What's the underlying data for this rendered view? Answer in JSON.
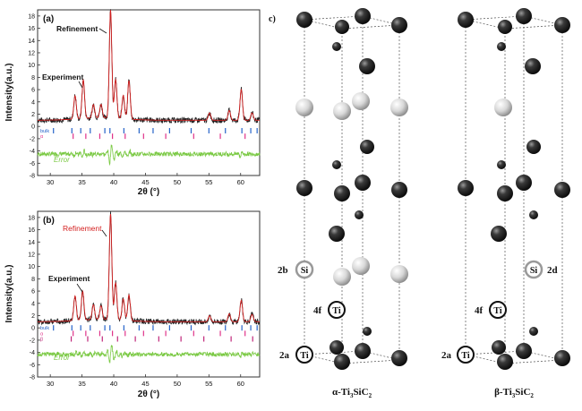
{
  "chart_data": [
    {
      "type": "line",
      "panel_label": "(a)",
      "xlabel": "2θ (°)",
      "ylabel": "Intensity(a.u.)",
      "xlim": [
        28,
        63
      ],
      "ylim": [
        -8,
        19
      ],
      "x_ticks": [
        30,
        35,
        40,
        45,
        50,
        55,
        60
      ],
      "y_ticks": [
        -8,
        -6,
        -4,
        -2,
        0,
        2,
        4,
        6,
        8,
        10,
        12,
        14,
        16,
        18
      ],
      "annotations": [
        "Refinement",
        "Experiment",
        "Error"
      ],
      "series": [
        {
          "name": "Experiment",
          "color": "#222222",
          "peaks": [
            [
              33.9,
              3.8
            ],
            [
              35.2,
              6.3
            ],
            [
              36.8,
              2.2
            ],
            [
              38.0,
              2.2
            ],
            [
              39.5,
              17.6
            ],
            [
              40.3,
              6.3
            ],
            [
              41.5,
              3.8
            ],
            [
              42.4,
              6.3
            ],
            [
              55.1,
              1.2
            ],
            [
              58.2,
              1.6
            ],
            [
              60.1,
              5.0
            ],
            [
              61.8,
              1.2
            ]
          ]
        },
        {
          "name": "Refinement",
          "color": "#d42020",
          "peaks": [
            [
              33.9,
              3.8
            ],
            [
              35.2,
              6.3
            ],
            [
              36.8,
              2.2
            ],
            [
              38.0,
              2.2
            ],
            [
              39.5,
              17.6
            ],
            [
              40.3,
              6.3
            ],
            [
              41.5,
              3.8
            ],
            [
              42.4,
              6.3
            ],
            [
              55.1,
              1.2
            ],
            [
              58.2,
              1.6
            ],
            [
              60.1,
              5.0
            ],
            [
              61.8,
              1.2
            ]
          ]
        },
        {
          "name": "Error",
          "color": "#7ac943",
          "baseline": -4.5
        }
      ],
      "tick_rows": [
        {
          "label": "bulk",
          "color": "#2563c9",
          "y": -0.7,
          "positions": [
            30.5,
            33.4,
            34.8,
            36.3,
            38.6,
            39.4,
            41.6,
            44.0,
            46.2,
            48.8,
            52.2,
            55.0,
            57.6,
            60.2,
            61.6,
            62.6
          ]
        },
        {
          "label": "α",
          "color": "#e0338a",
          "y": -1.6,
          "positions": [
            33.6,
            35.6,
            37.8,
            39.8,
            41.8,
            44.7,
            48.2,
            52.6,
            56.8,
            60.7
          ]
        }
      ]
    },
    {
      "type": "line",
      "panel_label": "(b)",
      "xlabel": "2θ (°)",
      "ylabel": "Intensity(a.u.)",
      "xlim": [
        28,
        63
      ],
      "ylim": [
        -8,
        19
      ],
      "x_ticks": [
        30,
        35,
        40,
        45,
        50,
        55,
        60
      ],
      "y_ticks": [
        -8,
        -6,
        -4,
        -2,
        0,
        2,
        4,
        6,
        8,
        10,
        12,
        14,
        16,
        18
      ],
      "annotations": [
        "Refinement",
        "Experiment",
        "Error"
      ],
      "series": [
        {
          "name": "Experiment",
          "color": "#222222",
          "peaks": [
            [
              33.9,
              4.0
            ],
            [
              35.1,
              4.7
            ],
            [
              36.8,
              2.4
            ],
            [
              38.0,
              2.2
            ],
            [
              39.5,
              17.2
            ],
            [
              40.3,
              6.0
            ],
            [
              41.5,
              3.5
            ],
            [
              42.4,
              4.2
            ],
            [
              55.1,
              1.0
            ],
            [
              58.2,
              1.3
            ],
            [
              60.1,
              3.5
            ],
            [
              61.8,
              1.2
            ]
          ]
        },
        {
          "name": "Refinement",
          "color": "#d42020",
          "peaks": [
            [
              33.9,
              4.0
            ],
            [
              35.1,
              4.7
            ],
            [
              36.8,
              2.4
            ],
            [
              38.0,
              2.2
            ],
            [
              39.5,
              17.2
            ],
            [
              40.3,
              6.0
            ],
            [
              41.5,
              3.5
            ],
            [
              42.4,
              4.2
            ],
            [
              55.1,
              1.0
            ],
            [
              58.2,
              1.3
            ],
            [
              60.1,
              3.5
            ],
            [
              61.8,
              1.2
            ]
          ]
        },
        {
          "name": "Error",
          "color": "#7ac943",
          "baseline": -4.3
        }
      ],
      "tick_rows": [
        {
          "label": "bulk",
          "color": "#2563c9",
          "y": 0.0,
          "positions": [
            30.5,
            33.4,
            34.8,
            36.3,
            38.6,
            39.4,
            41.6,
            44.0,
            46.2,
            48.8,
            52.2,
            55.0,
            57.6,
            60.2,
            61.6,
            62.6
          ]
        },
        {
          "label": "α",
          "color": "#e0338a",
          "y": -0.9,
          "positions": [
            33.6,
            35.6,
            37.8,
            39.8,
            41.8,
            44.7,
            48.2,
            52.6,
            56.8,
            60.7
          ]
        },
        {
          "label": "β",
          "color": "#c0267a",
          "y": -1.8,
          "positions": [
            33.3,
            35.9,
            38.2,
            40.6,
            43.4,
            47.1,
            50.6,
            54.2,
            58.5,
            61.9
          ]
        }
      ]
    }
  ],
  "structures": {
    "panel_label": "c)",
    "alpha": {
      "name_main": "α-Ti",
      "sub1": "3",
      "mid": "SiC",
      "sub2": "2",
      "sites": [
        {
          "label": "2b",
          "element": "Si",
          "side": "left"
        },
        {
          "label": "4f",
          "element": "Ti",
          "side": "left"
        },
        {
          "label": "2a",
          "element": "Ti",
          "side": "left"
        }
      ]
    },
    "beta": {
      "name_main": "β-Ti",
      "sub1": "3",
      "mid": "SiC",
      "sub2": "2",
      "sites": [
        {
          "label": "2d",
          "element": "Si",
          "side": "right"
        },
        {
          "label": "4f",
          "element": "Ti",
          "side": "left"
        },
        {
          "label": "2a",
          "element": "Ti",
          "side": "left"
        }
      ]
    }
  }
}
